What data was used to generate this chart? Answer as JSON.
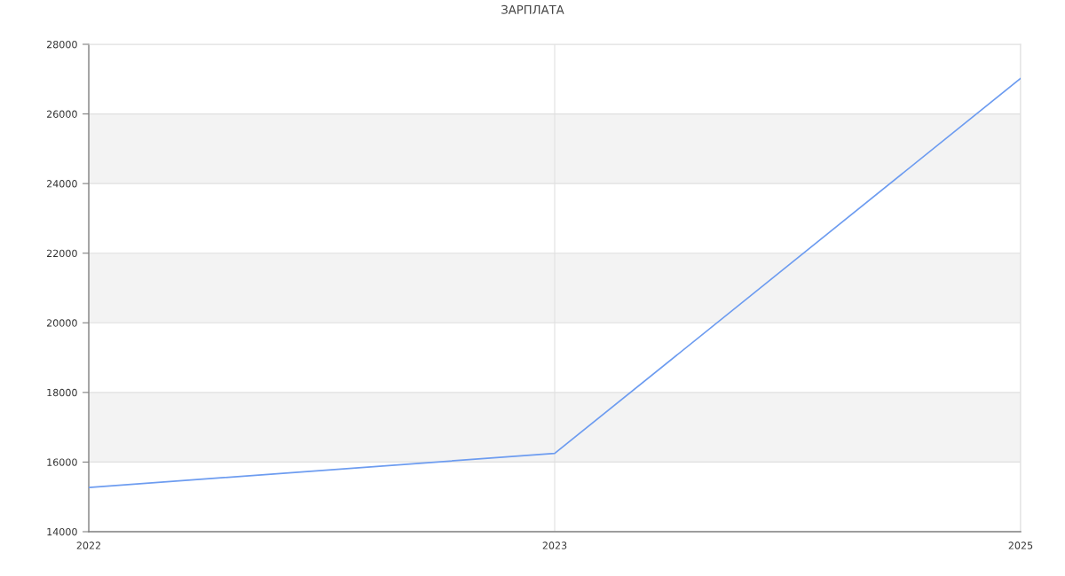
{
  "chart_data": {
    "type": "line",
    "title": "ЗАРПЛАТА",
    "categories": [
      "2022",
      "2023",
      "2025"
    ],
    "series": [
      {
        "color": "#6d9cf0",
        "values": [
          15270,
          16250,
          27020
        ]
      }
    ],
    "ylim": [
      14000,
      28000
    ],
    "yticks": [
      14000,
      16000,
      18000,
      20000,
      22000,
      24000,
      26000,
      28000
    ],
    "bands": [
      {
        "axis": "y",
        "from": 16000,
        "to": 18000,
        "color": "#f3f3f3"
      },
      {
        "axis": "y",
        "from": 20000,
        "to": 22000,
        "color": "#f3f3f3"
      },
      {
        "axis": "y",
        "from": 24000,
        "to": 26000,
        "color": "#f3f3f3"
      }
    ],
    "grid": true
  }
}
